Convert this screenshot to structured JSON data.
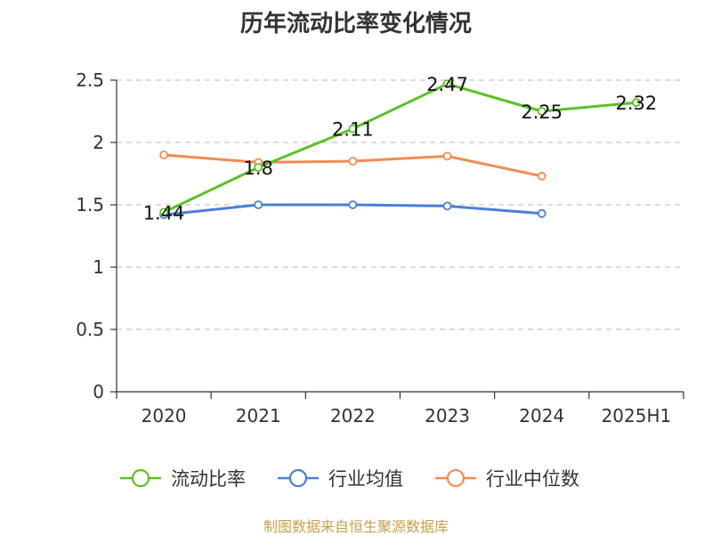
{
  "title": "历年流动比率变化情况",
  "source": "制图数据来自恒生聚源数据库",
  "chart_data": {
    "type": "line",
    "categories": [
      "2020",
      "2021",
      "2022",
      "2023",
      "2024",
      "2025H1"
    ],
    "ylim": [
      0,
      2.5
    ],
    "yticks": [
      "0",
      "0.5",
      "1",
      "1.5",
      "2",
      "2.5"
    ],
    "grid": "horizontal-dashed",
    "legend_position": "bottom",
    "series": [
      {
        "name": "流动比率",
        "color": "#5ac225",
        "values": [
          1.44,
          1.8,
          2.11,
          2.47,
          2.25,
          2.32
        ],
        "labels": [
          "1.44",
          "1.8",
          "2.11",
          "2.47",
          "2.25",
          "2.32"
        ]
      },
      {
        "name": "行业均值",
        "color": "#4a7fd8",
        "values": [
          1.42,
          1.5,
          1.5,
          1.49,
          1.43,
          null
        ]
      },
      {
        "name": "行业中位数",
        "color": "#f28c52",
        "values": [
          1.9,
          1.84,
          1.85,
          1.89,
          1.73,
          null
        ]
      }
    ]
  }
}
